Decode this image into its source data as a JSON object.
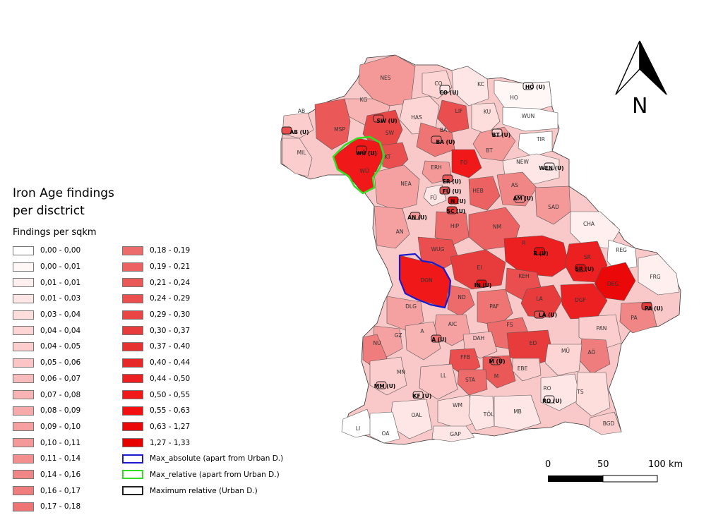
{
  "title_line1": "Iron Age findings",
  "title_line2": "per disctrict",
  "subtitle": "Findings per sqkm",
  "legend_left": [
    {
      "label": "0,00 - 0,00",
      "color": "#ffffff"
    },
    {
      "label": "0,00 - 0,01",
      "color": "#fff6f6"
    },
    {
      "label": "0,01 - 0,01",
      "color": "#ffefef"
    },
    {
      "label": "0,01 - 0,03",
      "color": "#ffe6e6"
    },
    {
      "label": "0,03 - 0,04",
      "color": "#fedddd"
    },
    {
      "label": "0,04 - 0,04",
      "color": "#fdd5d5"
    },
    {
      "label": "0,04 - 0,05",
      "color": "#fccdcd"
    },
    {
      "label": "0,05 - 0,06",
      "color": "#fbc5c5"
    },
    {
      "label": "0,06 - 0,07",
      "color": "#f9bcbc"
    },
    {
      "label": "0,07 - 0,08",
      "color": "#f8b3b3"
    },
    {
      "label": "0,08 - 0,09",
      "color": "#f6aaaa"
    },
    {
      "label": "0,09 - 0,10",
      "color": "#f5a1a1"
    },
    {
      "label": "0,10 - 0,11",
      "color": "#f49898"
    },
    {
      "label": "0,11 - 0,14",
      "color": "#f38f8f"
    },
    {
      "label": "0,14 - 0,16",
      "color": "#f18686"
    },
    {
      "label": "0,16 - 0,17",
      "color": "#f07d7d"
    },
    {
      "label": "0,17 - 0,18",
      "color": "#ef7474"
    }
  ],
  "legend_right": [
    {
      "label": "0,18 - 0,19",
      "color": "#ee6b6b"
    },
    {
      "label": "0,19 - 0,21",
      "color": "#ec6262"
    },
    {
      "label": "0,21 - 0,24",
      "color": "#eb5858"
    },
    {
      "label": "0,24 - 0,29",
      "color": "#ea4e4e"
    },
    {
      "label": "0,29 - 0,30",
      "color": "#e94545"
    },
    {
      "label": "0,30 - 0,37",
      "color": "#e83c3c"
    },
    {
      "label": "0,37 - 0,40",
      "color": "#e73232"
    },
    {
      "label": "0,40 - 0,44",
      "color": "#e62828"
    },
    {
      "label": "0,44 - 0,50",
      "color": "#ec2020"
    },
    {
      "label": "0,50 - 0,55",
      "color": "#f01818"
    },
    {
      "label": "0,55 - 0,63",
      "color": "#f21010"
    },
    {
      "label": "0,63 - 1,27",
      "color": "#ea0808"
    },
    {
      "label": "1,27 - 1,33",
      "color": "#e60000"
    }
  ],
  "outline_legend": [
    {
      "label": "Max_absolute (apart from Urban D.)",
      "color": "#1a1acc"
    },
    {
      "label": "Max_relative (apart from Urban D.)",
      "color": "#33dd22"
    },
    {
      "label": "Maximum relative (Urban D.)",
      "color": "#222222"
    }
  ],
  "north_label": "N",
  "scale": {
    "l0": "0",
    "l1": "50",
    "l2": "100 km"
  },
  "district_labels": [
    "NES",
    "CO",
    "CO (U)",
    "KC",
    "HO (U)",
    "HO",
    "KG",
    "HAS",
    "LIF",
    "KU",
    "WUN",
    "AB",
    "AB (U)",
    "MSP",
    "SW (U)",
    "SW",
    "BA",
    "BT (U)",
    "TIR",
    "MIL",
    "WÜ (U)",
    "WÜ",
    "KT",
    "BA (U)",
    "BT",
    "FO",
    "NEW",
    "WEN (U)",
    "ERH",
    "ER (U)",
    "NEA",
    "FÜ",
    "FÜ (U)",
    "N (U)",
    "HEB",
    "AS",
    "AM (U)",
    "SAD",
    "AN (U)",
    "SC (U)",
    "AN",
    "HIP",
    "NM",
    "CHA",
    "R",
    "R (U)",
    "SR",
    "REG",
    "WUG",
    "SR (U)",
    "EI",
    "KEH",
    "DON",
    "IN (U)",
    "DEG",
    "FRG",
    "ND",
    "LA",
    "DGF",
    "PAF",
    "LA (U)",
    "PA (U)",
    "DLG",
    "AIC",
    "FS",
    "PA",
    "GZ",
    "A",
    "PAN",
    "NU",
    "A (U)",
    "DAH",
    "ED",
    "AÖ",
    "FFB",
    "M (U)",
    "MÜ",
    "MN",
    "STA",
    "M",
    "EBE",
    "LL",
    "MM (U)",
    "KF (U)",
    "RO",
    "TS",
    "RO (U)",
    "WM",
    "OAL",
    "MB",
    "TÖL",
    "LI",
    "OA",
    "GAP",
    "BGD"
  ]
}
